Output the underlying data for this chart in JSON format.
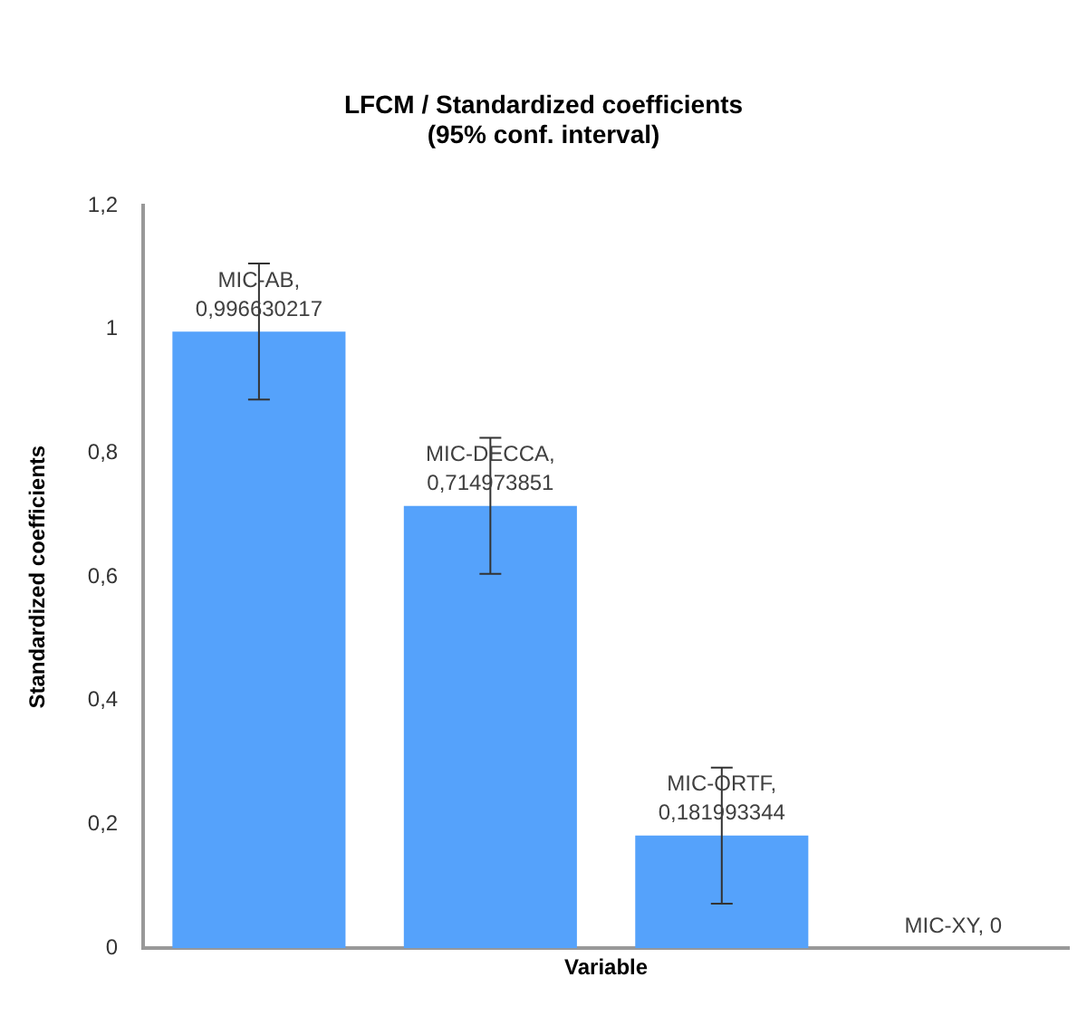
{
  "chart_data": {
    "type": "bar",
    "title": "LFCM / Standardized coefficients\n(95% conf. interval)",
    "xlabel": "Variable",
    "ylabel": "Standardized coefficients",
    "categories": [
      null,
      null,
      null,
      null
    ],
    "values": [
      0.996630217,
      0.714973851,
      0.181993344,
      0
    ],
    "errors": [
      0.11,
      0.11,
      0.11,
      null
    ],
    "value_labels": [
      "MIC-AB, 0,996630217",
      "MIC-DECCA, 0,714973851",
      "MIC-ORTF, 0,181993344",
      "MIC-XY, 0"
    ],
    "color": "#55a2fb",
    "ylim": [
      0,
      1.2
    ],
    "yticks": [
      {
        "value": 0,
        "label": "0"
      },
      {
        "value": 0.2,
        "label": "0,2"
      },
      {
        "value": 0.4,
        "label": "0,4"
      },
      {
        "value": 0.6,
        "label": "0,6"
      },
      {
        "value": 0.8,
        "label": "0,8"
      },
      {
        "value": 1,
        "label": "1"
      },
      {
        "value": 1.2,
        "label": "1,2"
      }
    ],
    "grid": false,
    "legend": false,
    "tick_labels": "y"
  }
}
